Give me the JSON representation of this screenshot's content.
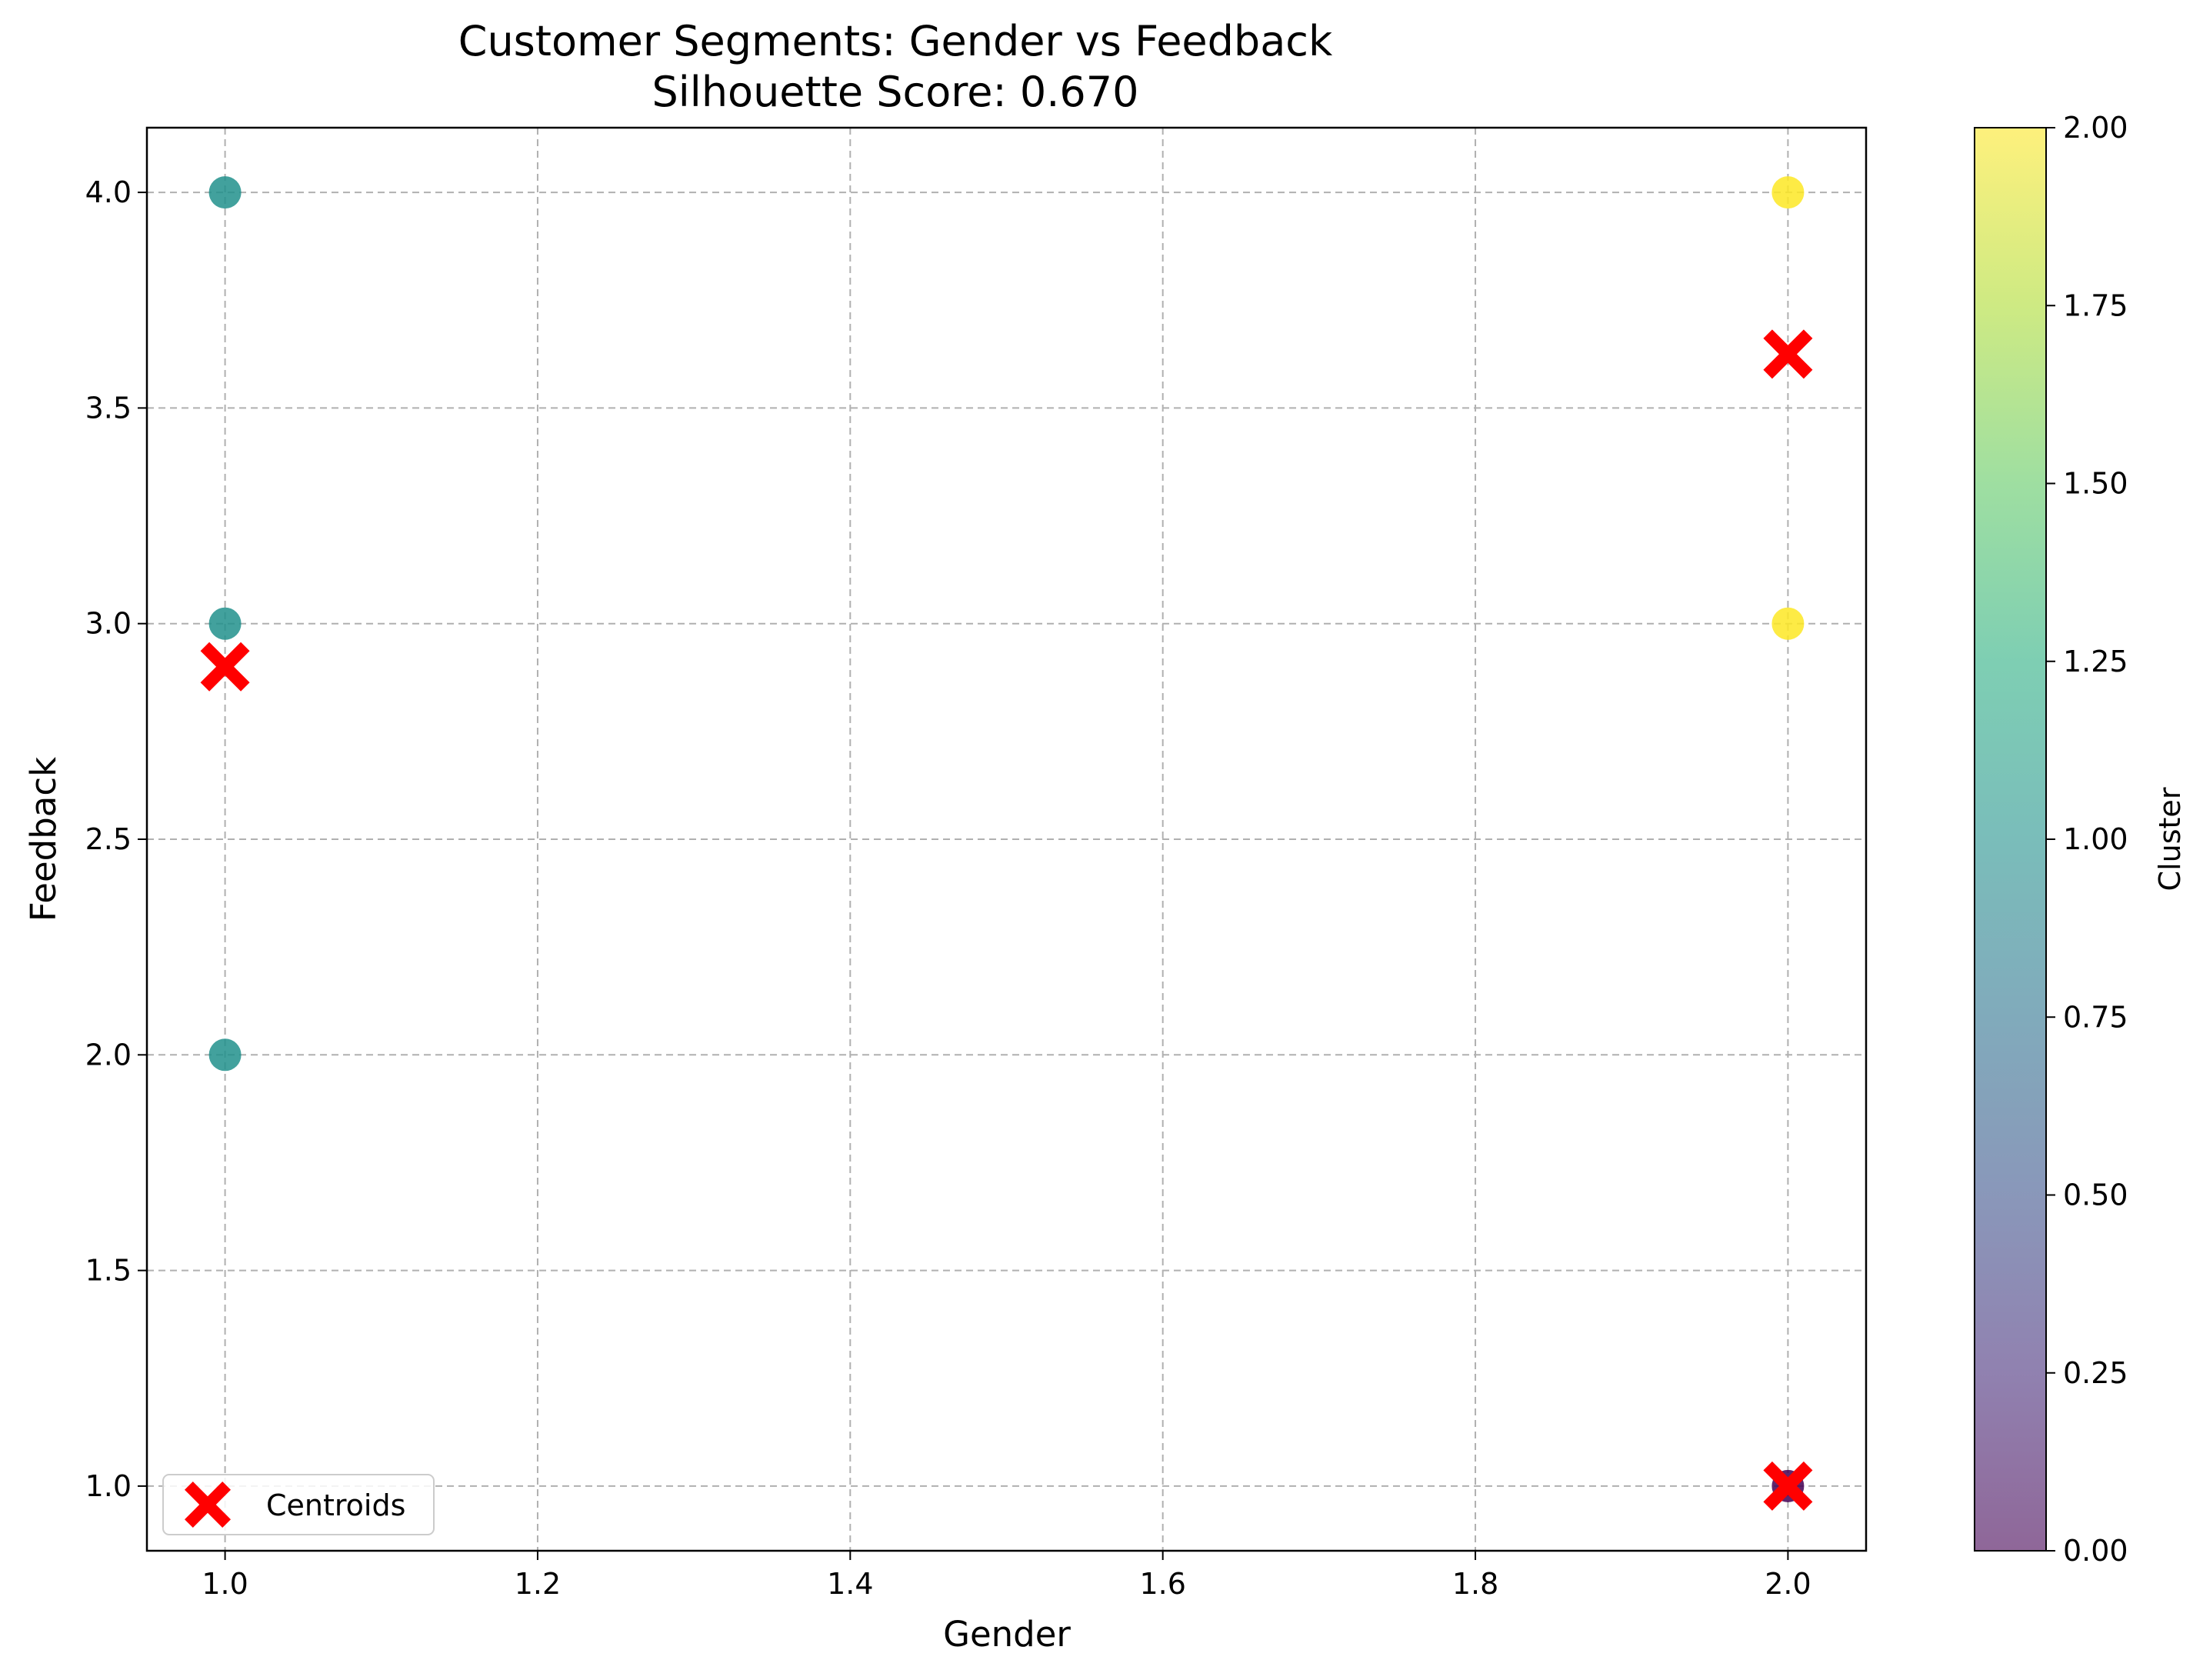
{
  "chart_data": {
    "type": "scatter",
    "title": "Customer Segments: Gender vs Feedback",
    "subtitle": "Silhouette Score: 0.670",
    "xlabel": "Gender",
    "ylabel": "Feedback",
    "xlim": [
      0.95,
      2.05
    ],
    "ylim": [
      0.85,
      4.15
    ],
    "xticks": [
      "1.0",
      "1.2",
      "1.4",
      "1.6",
      "1.8",
      "2.0"
    ],
    "yticks": [
      "1.0",
      "1.5",
      "2.0",
      "2.5",
      "3.0",
      "3.5",
      "4.0"
    ],
    "grid": true,
    "points": [
      {
        "x": 1.0,
        "y": 4.0,
        "cluster": 1
      },
      {
        "x": 1.0,
        "y": 3.0,
        "cluster": 1
      },
      {
        "x": 1.0,
        "y": 2.0,
        "cluster": 1
      },
      {
        "x": 2.0,
        "y": 4.0,
        "cluster": 2
      },
      {
        "x": 2.0,
        "y": 3.0,
        "cluster": 2
      },
      {
        "x": 2.0,
        "y": 1.0,
        "cluster": 0
      }
    ],
    "centroids": [
      {
        "x": 1.0,
        "y": 2.9
      },
      {
        "x": 2.0,
        "y": 3.625
      },
      {
        "x": 2.0,
        "y": 1.0
      }
    ],
    "cluster_colors": {
      "0": "#440154",
      "1": "#21918c",
      "2": "#fde725"
    },
    "centroid_color": "#ff0000",
    "legend": {
      "label": "Centroids",
      "placement": "lower-left"
    },
    "colorbar": {
      "label": "Cluster",
      "range": [
        0,
        2
      ],
      "ticks": [
        "0.00",
        "0.25",
        "0.50",
        "0.75",
        "1.00",
        "1.25",
        "1.50",
        "1.75",
        "2.00"
      ]
    }
  }
}
